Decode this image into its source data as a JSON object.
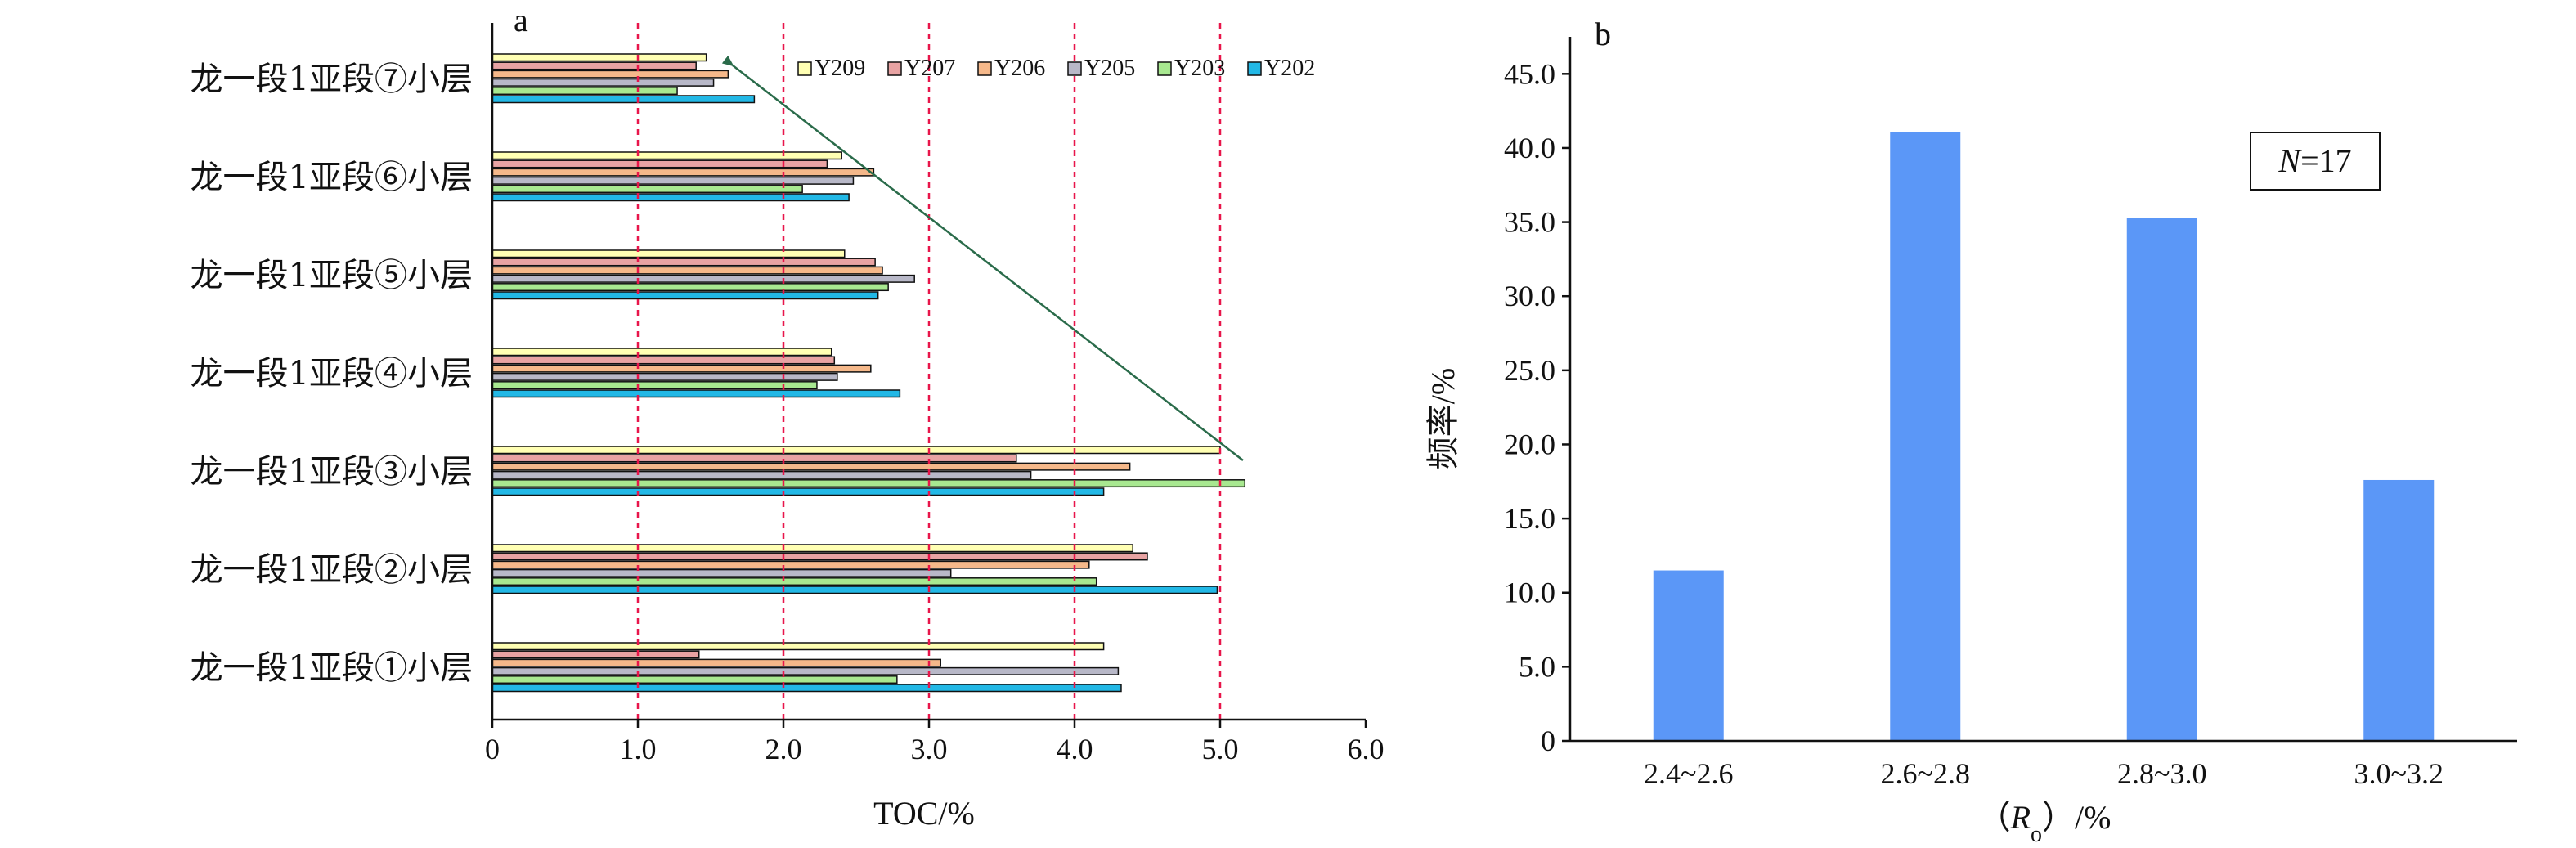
{
  "colors": {
    "Y209": "#ffffb3",
    "Y207": "#e8a3a3",
    "Y206": "#f5b88a",
    "Y205": "#b8b8c8",
    "Y203": "#a8e890",
    "Y202": "#22b8e6",
    "bar_b": "#5b97f7",
    "guide": "#e8154a",
    "trend_arrow": "#2a6b4a"
  },
  "chart_data": [
    {
      "panel": "a",
      "type": "bar",
      "orientation": "horizontal",
      "categories": [
        "龙一段1亚段⑦小层",
        "龙一段1亚段⑥小层",
        "龙一段1亚段⑤小层",
        "龙一段1亚段④小层",
        "龙一段1亚段③小层",
        "龙一段1亚段②小层",
        "龙一段1亚段①小层"
      ],
      "series": [
        {
          "name": "Y209",
          "values": [
            1.47,
            2.4,
            2.42,
            2.33,
            5.0,
            4.4,
            4.2
          ]
        },
        {
          "name": "Y207",
          "values": [
            1.4,
            2.3,
            2.63,
            2.35,
            3.6,
            4.5,
            1.42
          ]
        },
        {
          "name": "Y206",
          "values": [
            1.62,
            2.62,
            2.68,
            2.6,
            4.38,
            4.1,
            3.08
          ]
        },
        {
          "name": "Y205",
          "values": [
            1.52,
            2.48,
            2.9,
            2.37,
            3.7,
            3.15,
            4.3
          ]
        },
        {
          "name": "Y203",
          "values": [
            1.27,
            2.13,
            2.72,
            2.23,
            5.17,
            4.15,
            2.78
          ]
        },
        {
          "name": "Y202",
          "values": [
            1.8,
            2.45,
            2.65,
            2.8,
            4.2,
            4.98,
            4.32
          ]
        }
      ],
      "legend_order": [
        "Y209",
        "Y207",
        "Y206",
        "Y205",
        "Y203",
        "Y202"
      ],
      "xlabel": "TOC/%",
      "xlim": [
        0,
        6.0
      ],
      "xticks": [
        "0",
        "1.0",
        "2.0",
        "3.0",
        "4.0",
        "5.0",
        "6.0"
      ],
      "guide_lines": [
        1.0,
        2.0,
        3.0,
        4.0,
        5.0
      ]
    },
    {
      "panel": "b",
      "type": "bar",
      "categories": [
        "2.4~2.6",
        "2.6~2.8",
        "2.8~3.0",
        "3.0~3.2"
      ],
      "values": [
        11.5,
        41.1,
        35.3,
        17.6
      ],
      "xlabel_parts": [
        "（",
        "R",
        "o",
        "）/%"
      ],
      "ylabel": "频率/%",
      "ylim": [
        0,
        47.5
      ],
      "yticks": [
        "0",
        "5.0",
        "10.0",
        "15.0",
        "20.0",
        "25.0",
        "30.0",
        "35.0",
        "40.0",
        "45.0"
      ],
      "annotation_parts": [
        "N",
        "=17"
      ]
    }
  ]
}
